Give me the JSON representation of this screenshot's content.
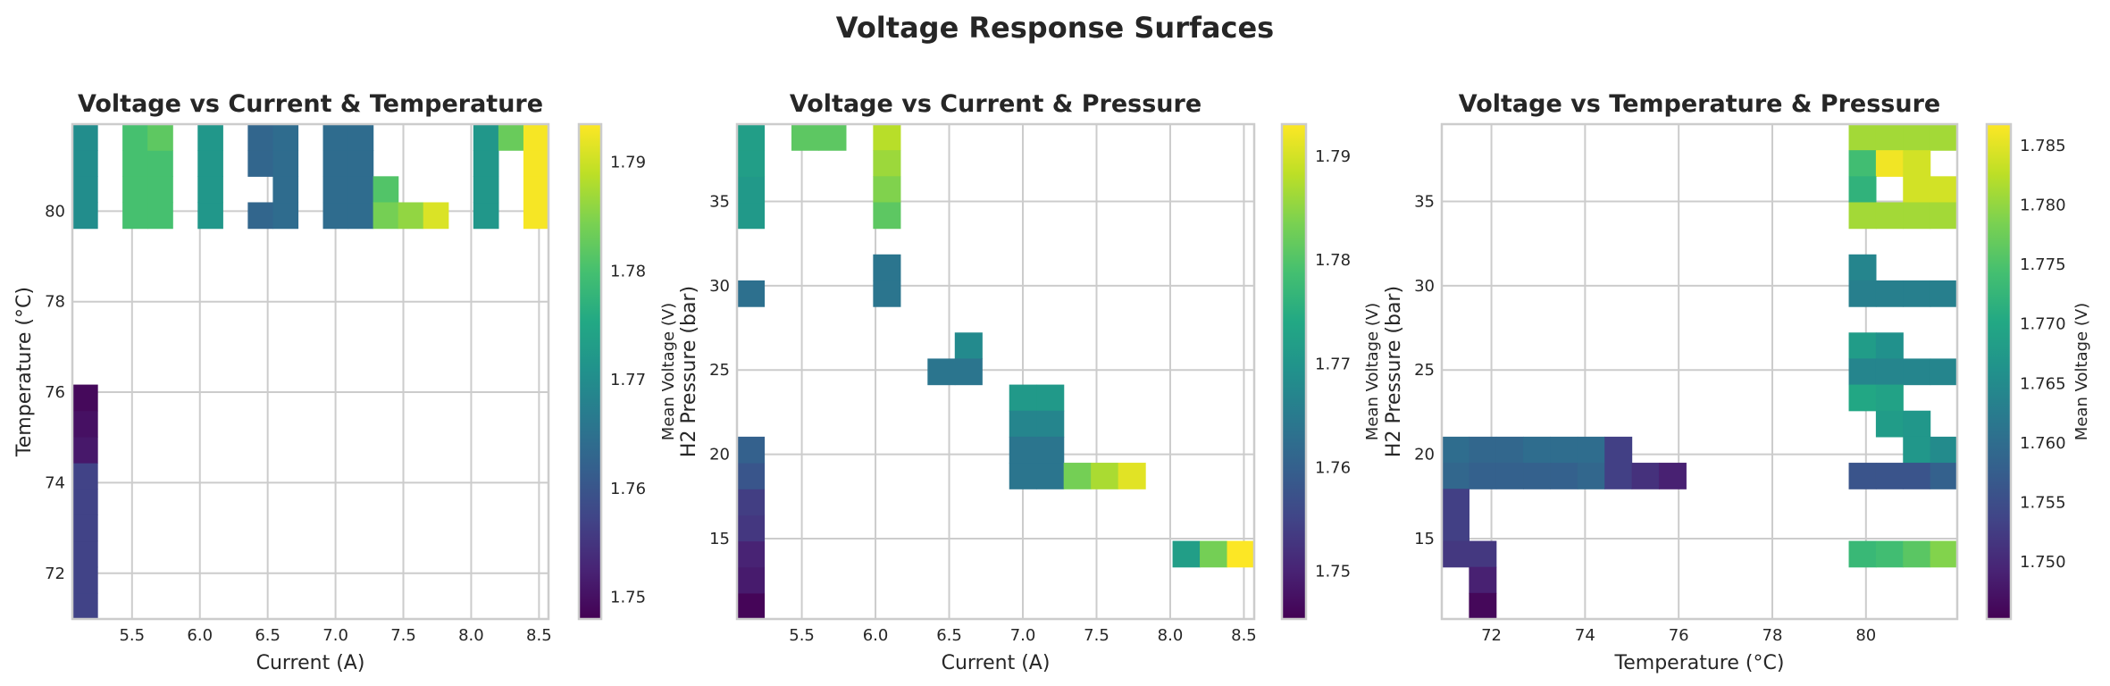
{
  "title": "Voltage Response Surfaces",
  "colors": {
    "grid": "#cccccc",
    "frame": "#cccccc",
    "text": "#262626",
    "colormap": [
      "#440154",
      "#482475",
      "#414487",
      "#355f8d",
      "#2a788e",
      "#21918c",
      "#22a884",
      "#44bf70",
      "#7ad151",
      "#bddf26",
      "#fde725"
    ]
  },
  "chart_data": [
    {
      "type": "heatmap",
      "title": "Voltage vs Current & Temperature",
      "xlabel": "Current (A)",
      "ylabel": "Temperature (°C)",
      "colorbar_label": "Mean Voltage (V)",
      "xlim": [
        5.06,
        8.57
      ],
      "ylim": [
        70.99,
        81.92
      ],
      "bins": [
        19,
        19
      ],
      "clim": [
        1.748,
        1.7935
      ],
      "xticks": [
        5.5,
        6.0,
        6.5,
        7.0,
        7.5,
        8.0,
        8.5
      ],
      "xtick_labels": [
        "5.5",
        "6.0",
        "6.5",
        "7.0",
        "7.5",
        "8.0",
        "8.5"
      ],
      "yticks": [
        72,
        74,
        76,
        78,
        80
      ],
      "ytick_labels": [
        "72",
        "74",
        "76",
        "78",
        "80"
      ],
      "cticks": [
        1.75,
        1.76,
        1.77,
        1.78,
        1.79
      ],
      "ctick_labels": [
        "1.75",
        "1.76",
        "1.77",
        "1.78",
        "1.79"
      ],
      "cells_note": "[x_bin, y_bin, mean_voltage]",
      "cells": [
        [
          0,
          15,
          1.77
        ],
        [
          0,
          16,
          1.77
        ],
        [
          0,
          17,
          1.77
        ],
        [
          0,
          18,
          1.77
        ],
        [
          0,
          0,
          1.757
        ],
        [
          0,
          1,
          1.757
        ],
        [
          0,
          2,
          1.757
        ],
        [
          0,
          3,
          1.757
        ],
        [
          0,
          4,
          1.757
        ],
        [
          0,
          5,
          1.757
        ],
        [
          0,
          6,
          1.751
        ],
        [
          0,
          7,
          1.75
        ],
        [
          0,
          8,
          1.749
        ],
        [
          2,
          15,
          1.78
        ],
        [
          2,
          16,
          1.78
        ],
        [
          2,
          17,
          1.78
        ],
        [
          2,
          18,
          1.78
        ],
        [
          3,
          15,
          1.78
        ],
        [
          3,
          16,
          1.78
        ],
        [
          3,
          17,
          1.78
        ],
        [
          3,
          18,
          1.782
        ],
        [
          5,
          15,
          1.772
        ],
        [
          5,
          16,
          1.772
        ],
        [
          5,
          17,
          1.772
        ],
        [
          5,
          18,
          1.772
        ],
        [
          7,
          15,
          1.763
        ],
        [
          7,
          17,
          1.763
        ],
        [
          7,
          18,
          1.763
        ],
        [
          8,
          15,
          1.764
        ],
        [
          8,
          16,
          1.764
        ],
        [
          8,
          17,
          1.764
        ],
        [
          8,
          18,
          1.764
        ],
        [
          10,
          15,
          1.764
        ],
        [
          10,
          16,
          1.764
        ],
        [
          10,
          17,
          1.764
        ],
        [
          10,
          18,
          1.764
        ],
        [
          11,
          15,
          1.764
        ],
        [
          11,
          16,
          1.764
        ],
        [
          11,
          17,
          1.764
        ],
        [
          11,
          18,
          1.764
        ],
        [
          12,
          16,
          1.781
        ],
        [
          12,
          15,
          1.784
        ],
        [
          13,
          15,
          1.786
        ],
        [
          14,
          15,
          1.791
        ],
        [
          16,
          15,
          1.772
        ],
        [
          16,
          16,
          1.772
        ],
        [
          16,
          17,
          1.772
        ],
        [
          16,
          18,
          1.772
        ],
        [
          17,
          18,
          1.783
        ],
        [
          18,
          15,
          1.793
        ],
        [
          18,
          16,
          1.793
        ],
        [
          18,
          17,
          1.793
        ],
        [
          18,
          18,
          1.793
        ]
      ]
    },
    {
      "type": "heatmap",
      "title": "Voltage vs Current & Pressure",
      "xlabel": "Current (A)",
      "ylabel": "H2 Pressure (bar)",
      "colorbar_label": "Mean Voltage (V)",
      "xlim": [
        5.06,
        8.57
      ],
      "ylim": [
        10.23,
        39.58
      ],
      "bins": [
        19,
        19
      ],
      "clim": [
        1.7454,
        1.7931
      ],
      "xticks": [
        5.5,
        6.0,
        6.5,
        7.0,
        7.5,
        8.0,
        8.5
      ],
      "xtick_labels": [
        "5.5",
        "6.0",
        "6.5",
        "7.0",
        "7.5",
        "8.0",
        "8.5"
      ],
      "yticks": [
        15,
        20,
        25,
        30,
        35
      ],
      "ytick_labels": [
        "15",
        "20",
        "25",
        "30",
        "35"
      ],
      "cticks": [
        1.75,
        1.76,
        1.77,
        1.78,
        1.79
      ],
      "ctick_labels": [
        "1.75",
        "1.76",
        "1.77",
        "1.78",
        "1.79"
      ],
      "cells_note": "[x_bin, y_bin, mean_voltage]",
      "cells": [
        [
          0,
          15,
          1.771
        ],
        [
          0,
          16,
          1.771
        ],
        [
          0,
          17,
          1.772
        ],
        [
          0,
          18,
          1.772
        ],
        [
          0,
          12,
          1.763
        ],
        [
          0,
          0,
          1.746
        ],
        [
          0,
          1,
          1.749
        ],
        [
          0,
          2,
          1.75
        ],
        [
          0,
          3,
          1.753
        ],
        [
          0,
          4,
          1.754
        ],
        [
          0,
          5,
          1.758
        ],
        [
          0,
          6,
          1.76
        ],
        [
          2,
          18,
          1.781
        ],
        [
          3,
          18,
          1.781
        ],
        [
          5,
          18,
          1.788
        ],
        [
          5,
          17,
          1.786
        ],
        [
          5,
          16,
          1.784
        ],
        [
          5,
          15,
          1.781
        ],
        [
          5,
          12,
          1.764
        ],
        [
          5,
          13,
          1.764
        ],
        [
          7,
          9,
          1.764
        ],
        [
          8,
          10,
          1.768
        ],
        [
          8,
          9,
          1.764
        ],
        [
          10,
          8,
          1.771
        ],
        [
          10,
          7,
          1.767
        ],
        [
          10,
          6,
          1.764
        ],
        [
          10,
          5,
          1.764
        ],
        [
          11,
          8,
          1.771
        ],
        [
          11,
          7,
          1.767
        ],
        [
          11,
          6,
          1.764
        ],
        [
          11,
          5,
          1.764
        ],
        [
          12,
          5,
          1.783
        ],
        [
          13,
          5,
          1.787
        ],
        [
          14,
          5,
          1.791
        ],
        [
          16,
          2,
          1.772
        ],
        [
          17,
          2,
          1.783
        ],
        [
          18,
          2,
          1.793
        ]
      ]
    },
    {
      "type": "heatmap",
      "title": "Voltage vs Temperature & Pressure",
      "xlabel": "Temperature (°C)",
      "ylabel": "H2 Pressure (bar)",
      "colorbar_label": "Mean Voltage (V)",
      "xlim": [
        70.94,
        81.95
      ],
      "ylim": [
        10.23,
        39.58
      ],
      "bins": [
        19,
        19
      ],
      "clim": [
        1.7452,
        1.7868
      ],
      "xticks": [
        72,
        74,
        76,
        78,
        80
      ],
      "xtick_labels": [
        "72",
        "74",
        "76",
        "78",
        "80"
      ],
      "yticks": [
        15,
        20,
        25,
        30,
        35
      ],
      "ytick_labels": [
        "15",
        "20",
        "25",
        "30",
        "35"
      ],
      "cticks": [
        1.75,
        1.755,
        1.76,
        1.765,
        1.77,
        1.775,
        1.78,
        1.785
      ],
      "ctick_labels": [
        "1.750",
        "1.755",
        "1.760",
        "1.765",
        "1.770",
        "1.775",
        "1.780",
        "1.785"
      ],
      "cells_note": "[x_bin, y_bin, mean_voltage]",
      "cells": [
        [
          0,
          6,
          1.76
        ],
        [
          1,
          6,
          1.759
        ],
        [
          2,
          6,
          1.759
        ],
        [
          3,
          6,
          1.76
        ],
        [
          4,
          6,
          1.76
        ],
        [
          5,
          6,
          1.76
        ],
        [
          6,
          6,
          1.753
        ],
        [
          0,
          5,
          1.759
        ],
        [
          1,
          5,
          1.758
        ],
        [
          2,
          5,
          1.758
        ],
        [
          3,
          5,
          1.758
        ],
        [
          4,
          5,
          1.758
        ],
        [
          5,
          5,
          1.759
        ],
        [
          6,
          5,
          1.753
        ],
        [
          7,
          5,
          1.751
        ],
        [
          8,
          5,
          1.749
        ],
        [
          0,
          4,
          1.753
        ],
        [
          0,
          3,
          1.753
        ],
        [
          0,
          2,
          1.752
        ],
        [
          1,
          2,
          1.752
        ],
        [
          1,
          1,
          1.749
        ],
        [
          1,
          0,
          1.746
        ],
        [
          15,
          18,
          1.781
        ],
        [
          16,
          18,
          1.781
        ],
        [
          17,
          18,
          1.781
        ],
        [
          18,
          18,
          1.781
        ],
        [
          15,
          17,
          1.774
        ],
        [
          16,
          17,
          1.786
        ],
        [
          17,
          17,
          1.784
        ],
        [
          15,
          16,
          1.772
        ],
        [
          17,
          16,
          1.784
        ],
        [
          18,
          16,
          1.784
        ],
        [
          15,
          15,
          1.781
        ],
        [
          16,
          15,
          1.781
        ],
        [
          17,
          15,
          1.781
        ],
        [
          18,
          15,
          1.781
        ],
        [
          15,
          13,
          1.764
        ],
        [
          15,
          12,
          1.763
        ],
        [
          16,
          12,
          1.763
        ],
        [
          17,
          12,
          1.763
        ],
        [
          18,
          12,
          1.763
        ],
        [
          15,
          10,
          1.768
        ],
        [
          16,
          10,
          1.766
        ],
        [
          15,
          9,
          1.764
        ],
        [
          16,
          9,
          1.764
        ],
        [
          17,
          9,
          1.764
        ],
        [
          18,
          9,
          1.764
        ],
        [
          15,
          8,
          1.77
        ],
        [
          16,
          8,
          1.769
        ],
        [
          16,
          7,
          1.768
        ],
        [
          17,
          7,
          1.767
        ],
        [
          17,
          6,
          1.767
        ],
        [
          18,
          6,
          1.765
        ],
        [
          15,
          5,
          1.756
        ],
        [
          16,
          5,
          1.756
        ],
        [
          17,
          5,
          1.756
        ],
        [
          18,
          5,
          1.758
        ],
        [
          15,
          2,
          1.773
        ],
        [
          16,
          2,
          1.774
        ],
        [
          17,
          2,
          1.776
        ],
        [
          18,
          2,
          1.779
        ]
      ]
    }
  ]
}
